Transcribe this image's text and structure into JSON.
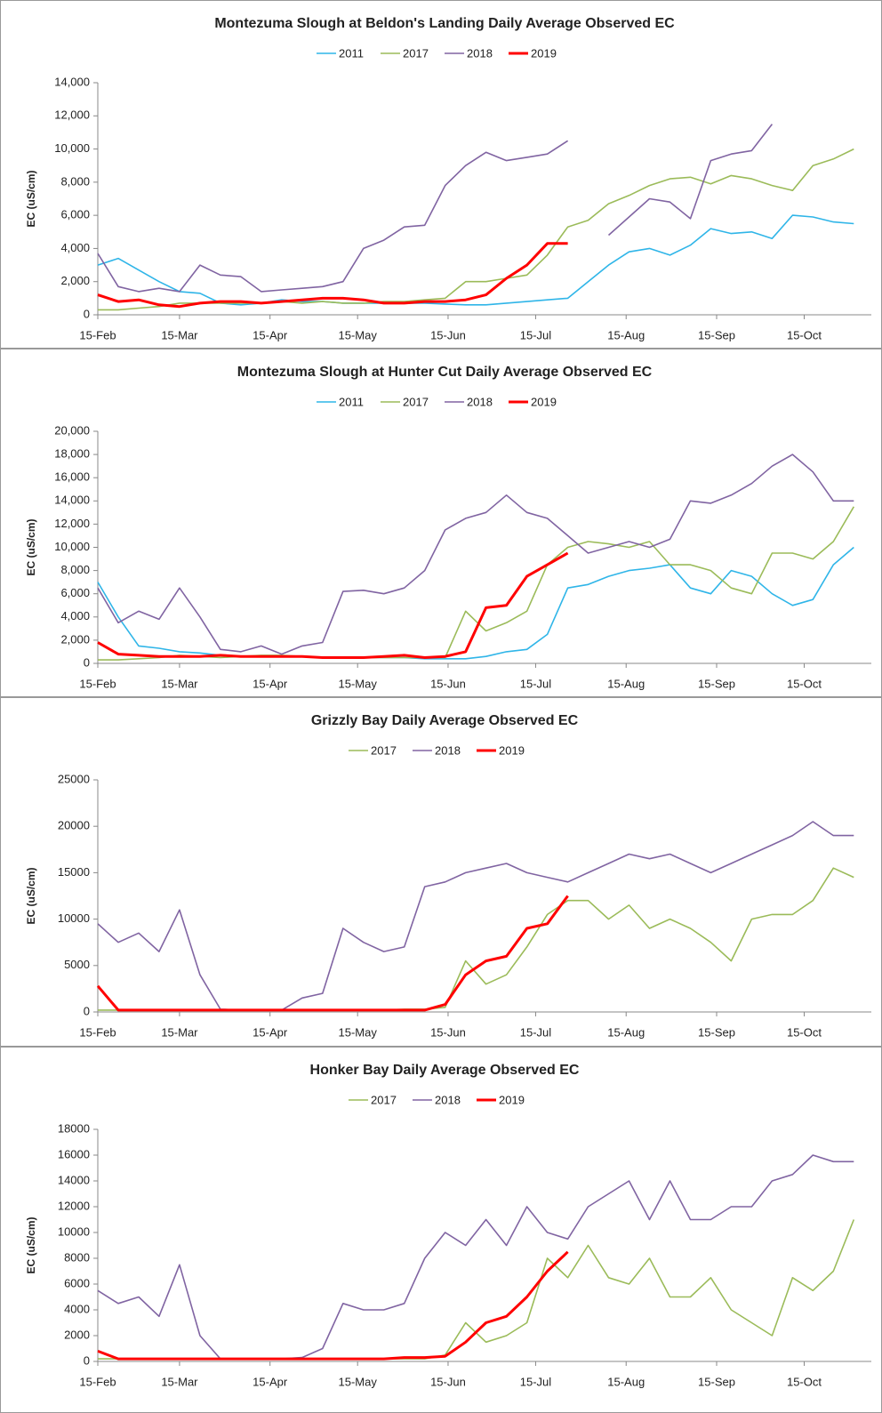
{
  "chart_data": [
    {
      "type": "line",
      "title": "Montezuma Slough at Beldon's Landing Daily Average  Observed EC",
      "y_label": "EC (uS/cm)",
      "legend": "top",
      "x": [
        "15-Feb",
        "22-Feb",
        "1-Mar",
        "8-Mar",
        "15-Mar",
        "22-Mar",
        "29-Mar",
        "5-Apr",
        "12-Apr",
        "19-Apr",
        "26-Apr",
        "3-May",
        "10-May",
        "17-May",
        "24-May",
        "31-May",
        "7-Jun",
        "14-Jun",
        "21-Jun",
        "28-Jun",
        "5-Jul",
        "12-Jul",
        "19-Jul",
        "26-Jul",
        "2-Aug",
        "9-Aug",
        "16-Aug",
        "23-Aug",
        "30-Aug",
        "6-Sep",
        "13-Sep",
        "20-Sep",
        "27-Sep",
        "4-Oct",
        "11-Oct",
        "18-Oct",
        "25-Oct",
        "1-Nov"
      ],
      "xlim": [
        "15-Feb",
        "7-Nov"
      ],
      "xticks": [
        "15-Feb",
        "15-Mar",
        "15-Apr",
        "15-May",
        "15-Jun",
        "15-Jul",
        "15-Aug",
        "15-Sep",
        "15-Oct"
      ],
      "ylim": [
        0,
        14000
      ],
      "yticks": [
        0,
        {
          "value": 2000,
          "label": "2,000"
        },
        {
          "value": 4000,
          "label": "4,000"
        },
        {
          "value": 6000,
          "label": "6,000"
        },
        {
          "value": 8000,
          "label": "8,000"
        },
        {
          "value": 10000,
          "label": "10,000"
        },
        {
          "value": 12000,
          "label": "12,000"
        },
        {
          "value": 14000,
          "label": "14,000"
        }
      ],
      "series": [
        {
          "name": "2011",
          "color": "#2fb5e8",
          "values": [
            3000,
            3400,
            2700,
            2000,
            1400,
            1300,
            700,
            600,
            700,
            900,
            800,
            800,
            700,
            700,
            700,
            700,
            700,
            650,
            600,
            600,
            700,
            800,
            900,
            1000,
            2000,
            3000,
            3800,
            4000,
            3600,
            4200,
            5200,
            4900,
            5000,
            4600,
            6000,
            5900,
            5600,
            5500
          ]
        },
        {
          "name": "2017",
          "color": "#9bbb59",
          "values": [
            300,
            300,
            400,
            500,
            700,
            700,
            700,
            700,
            700,
            800,
            700,
            800,
            700,
            700,
            800,
            800,
            900,
            1000,
            2000,
            2000,
            2200,
            2400,
            3600,
            5300,
            5700,
            6700,
            7200,
            7800,
            8200,
            8300,
            7900,
            8400,
            8200,
            7800,
            7500,
            9000,
            9400,
            10000
          ]
        },
        {
          "name": "2018",
          "color": "#8064a2",
          "values": [
            3700,
            1700,
            1400,
            1600,
            1400,
            3000,
            2400,
            2300,
            1400,
            1500,
            1600,
            1700,
            2000,
            4000,
            4500,
            5300,
            5400,
            7800,
            9000,
            9800,
            9300,
            9500,
            9700,
            10500,
            null,
            4800,
            5900,
            7000,
            6800,
            5800,
            9300,
            9700,
            9900,
            11500,
            null,
            null,
            null,
            null
          ]
        },
        {
          "name": "2019",
          "color": "#ff0000",
          "values": [
            1200,
            800,
            900,
            600,
            500,
            700,
            800,
            800,
            700,
            800,
            900,
            1000,
            1000,
            900,
            700,
            700,
            800,
            800,
            900,
            1200,
            2200,
            3000,
            4300,
            4300,
            null,
            null,
            null,
            null,
            null,
            null,
            null,
            null,
            null,
            null,
            null,
            null,
            null,
            null
          ]
        }
      ]
    },
    {
      "type": "line",
      "title": "Montezuma Slough at Hunter Cut Daily Average  Observed EC",
      "y_label": "EC (uS/cm)",
      "legend": "top",
      "x": [
        "15-Feb",
        "22-Feb",
        "1-Mar",
        "8-Mar",
        "15-Mar",
        "22-Mar",
        "29-Mar",
        "5-Apr",
        "12-Apr",
        "19-Apr",
        "26-Apr",
        "3-May",
        "10-May",
        "17-May",
        "24-May",
        "31-May",
        "7-Jun",
        "14-Jun",
        "21-Jun",
        "28-Jun",
        "5-Jul",
        "12-Jul",
        "19-Jul",
        "26-Jul",
        "2-Aug",
        "9-Aug",
        "16-Aug",
        "23-Aug",
        "30-Aug",
        "6-Sep",
        "13-Sep",
        "20-Sep",
        "27-Sep",
        "4-Oct",
        "11-Oct",
        "18-Oct",
        "25-Oct",
        "1-Nov"
      ],
      "xlim": [
        "15-Feb",
        "7-Nov"
      ],
      "xticks": [
        "15-Feb",
        "15-Mar",
        "15-Apr",
        "15-May",
        "15-Jun",
        "15-Jul",
        "15-Aug",
        "15-Sep",
        "15-Oct"
      ],
      "ylim": [
        0,
        20000
      ],
      "yticks": [
        0,
        {
          "value": 2000,
          "label": "2,000"
        },
        {
          "value": 4000,
          "label": "4,000"
        },
        {
          "value": 6000,
          "label": "6,000"
        },
        {
          "value": 8000,
          "label": "8,000"
        },
        {
          "value": 10000,
          "label": "10,000"
        },
        {
          "value": 12000,
          "label": "12,000"
        },
        {
          "value": 14000,
          "label": "14,000"
        },
        {
          "value": 16000,
          "label": "16,000"
        },
        {
          "value": 18000,
          "label": "18,000"
        },
        {
          "value": 20000,
          "label": "20,000"
        }
      ],
      "series": [
        {
          "name": "2011",
          "color": "#2fb5e8",
          "values": [
            7000,
            4000,
            1500,
            1300,
            1000,
            900,
            700,
            600,
            600,
            600,
            600,
            500,
            500,
            500,
            500,
            500,
            400,
            400,
            400,
            600,
            1000,
            1200,
            2500,
            6500,
            6800,
            7500,
            8000,
            8200,
            8500,
            6500,
            6000,
            8000,
            7500,
            6000,
            5000,
            5500,
            8500,
            10000
          ]
        },
        {
          "name": "2017",
          "color": "#9bbb59",
          "values": [
            300,
            300,
            400,
            500,
            700,
            600,
            500,
            600,
            700,
            700,
            600,
            500,
            500,
            500,
            500,
            500,
            500,
            500,
            4500,
            2800,
            3500,
            4500,
            8500,
            10000,
            10500,
            10300,
            10000,
            10500,
            8500,
            8500,
            8000,
            6500,
            6000,
            9500,
            9500,
            9000,
            10500,
            13500
          ]
        },
        {
          "name": "2018",
          "color": "#8064a2",
          "values": [
            6500,
            3500,
            4500,
            3800,
            6500,
            4000,
            1200,
            1000,
            1500,
            800,
            1500,
            1800,
            6200,
            6300,
            6000,
            6500,
            8000,
            11500,
            12500,
            13000,
            14500,
            13000,
            12500,
            11000,
            9500,
            10000,
            10500,
            10000,
            10700,
            14000,
            13800,
            14500,
            15500,
            17000,
            18000,
            16500,
            14000,
            14000
          ]
        },
        {
          "name": "2019",
          "color": "#ff0000",
          "values": [
            1800,
            800,
            700,
            600,
            600,
            600,
            700,
            600,
            600,
            600,
            600,
            500,
            500,
            500,
            600,
            700,
            500,
            600,
            1000,
            4800,
            5000,
            7500,
            8500,
            9500,
            null,
            null,
            null,
            null,
            null,
            null,
            null,
            null,
            null,
            null,
            null,
            null,
            null,
            null
          ]
        }
      ]
    },
    {
      "type": "line",
      "title": "Grizzly Bay Daily Average  Observed EC",
      "y_label": "EC (uS/cm)",
      "legend": "top",
      "x": [
        "15-Feb",
        "22-Feb",
        "1-Mar",
        "8-Mar",
        "15-Mar",
        "22-Mar",
        "29-Mar",
        "5-Apr",
        "12-Apr",
        "19-Apr",
        "26-Apr",
        "3-May",
        "10-May",
        "17-May",
        "24-May",
        "31-May",
        "7-Jun",
        "14-Jun",
        "21-Jun",
        "28-Jun",
        "5-Jul",
        "12-Jul",
        "19-Jul",
        "26-Jul",
        "2-Aug",
        "9-Aug",
        "16-Aug",
        "23-Aug",
        "30-Aug",
        "6-Sep",
        "13-Sep",
        "20-Sep",
        "27-Sep",
        "4-Oct",
        "11-Oct",
        "18-Oct",
        "25-Oct",
        "1-Nov"
      ],
      "xlim": [
        "15-Feb",
        "7-Nov"
      ],
      "xticks": [
        "15-Feb",
        "15-Mar",
        "15-Apr",
        "15-May",
        "15-Jun",
        "15-Jul",
        "15-Aug",
        "15-Sep",
        "15-Oct"
      ],
      "ylim": [
        0,
        25000
      ],
      "yticks": [
        0,
        5000,
        10000,
        15000,
        20000,
        25000
      ],
      "series": [
        {
          "name": "2017",
          "color": "#9bbb59",
          "values": [
            200,
            200,
            200,
            200,
            200,
            200,
            200,
            200,
            200,
            200,
            200,
            200,
            200,
            200,
            200,
            300,
            300,
            500,
            5500,
            3000,
            4000,
            7000,
            10500,
            12000,
            12000,
            10000,
            11500,
            9000,
            10000,
            9000,
            7500,
            5500,
            10000,
            10500,
            10500,
            12000,
            15500,
            14500
          ]
        },
        {
          "name": "2018",
          "color": "#8064a2",
          "values": [
            9500,
            7500,
            8500,
            6500,
            11000,
            4000,
            300,
            200,
            200,
            200,
            1500,
            2000,
            9000,
            7500,
            6500,
            7000,
            13500,
            14000,
            15000,
            15500,
            16000,
            15000,
            14500,
            14000,
            15000,
            16000,
            17000,
            16500,
            17000,
            16000,
            15000,
            16000,
            17000,
            18000,
            19000,
            20500,
            19000,
            19000
          ]
        },
        {
          "name": "2019",
          "color": "#ff0000",
          "values": [
            2800,
            200,
            200,
            200,
            200,
            200,
            200,
            200,
            200,
            200,
            200,
            200,
            200,
            200,
            200,
            200,
            200,
            800,
            4000,
            5500,
            6000,
            9000,
            9500,
            12500,
            null,
            null,
            null,
            null,
            null,
            null,
            null,
            null,
            null,
            null,
            null,
            null,
            null,
            null
          ]
        }
      ]
    },
    {
      "type": "line",
      "title": "Honker Bay Daily Average  Observed EC",
      "y_label": "EC (uS/cm)",
      "legend": "top",
      "x": [
        "15-Feb",
        "22-Feb",
        "1-Mar",
        "8-Mar",
        "15-Mar",
        "22-Mar",
        "29-Mar",
        "5-Apr",
        "12-Apr",
        "19-Apr",
        "26-Apr",
        "3-May",
        "10-May",
        "17-May",
        "24-May",
        "31-May",
        "7-Jun",
        "14-Jun",
        "21-Jun",
        "28-Jun",
        "5-Jul",
        "12-Jul",
        "19-Jul",
        "26-Jul",
        "2-Aug",
        "9-Aug",
        "16-Aug",
        "23-Aug",
        "30-Aug",
        "6-Sep",
        "13-Sep",
        "20-Sep",
        "27-Sep",
        "4-Oct",
        "11-Oct",
        "18-Oct",
        "25-Oct",
        "1-Nov"
      ],
      "xlim": [
        "15-Feb",
        "7-Nov"
      ],
      "xticks": [
        "15-Feb",
        "15-Mar",
        "15-Apr",
        "15-May",
        "15-Jun",
        "15-Jul",
        "15-Aug",
        "15-Sep",
        "15-Oct"
      ],
      "ylim": [
        0,
        18000
      ],
      "yticks": [
        0,
        2000,
        4000,
        6000,
        8000,
        10000,
        12000,
        14000,
        16000,
        18000
      ],
      "series": [
        {
          "name": "2017",
          "color": "#9bbb59",
          "values": [
            200,
            200,
            200,
            200,
            200,
            200,
            200,
            200,
            200,
            200,
            200,
            200,
            200,
            200,
            200,
            200,
            200,
            500,
            3000,
            1500,
            2000,
            3000,
            8000,
            6500,
            9000,
            6500,
            6000,
            8000,
            5000,
            5000,
            6500,
            4000,
            3000,
            2000,
            6500,
            5500,
            7000,
            11000
          ]
        },
        {
          "name": "2018",
          "color": "#8064a2",
          "values": [
            5500,
            4500,
            5000,
            3500,
            7500,
            2000,
            200,
            200,
            200,
            200,
            300,
            1000,
            4500,
            4000,
            4000,
            4500,
            8000,
            10000,
            9000,
            11000,
            9000,
            12000,
            10000,
            9500,
            12000,
            13000,
            14000,
            11000,
            14000,
            11000,
            11000,
            12000,
            12000,
            14000,
            14500,
            16000,
            15500,
            15500
          ]
        },
        {
          "name": "2019",
          "color": "#ff0000",
          "values": [
            800,
            200,
            200,
            200,
            200,
            200,
            200,
            200,
            200,
            200,
            200,
            200,
            200,
            200,
            200,
            300,
            300,
            400,
            1500,
            3000,
            3500,
            5000,
            7000,
            8500,
            null,
            null,
            null,
            null,
            null,
            null,
            null,
            null,
            null,
            null,
            null,
            null,
            null,
            null
          ]
        }
      ]
    }
  ]
}
